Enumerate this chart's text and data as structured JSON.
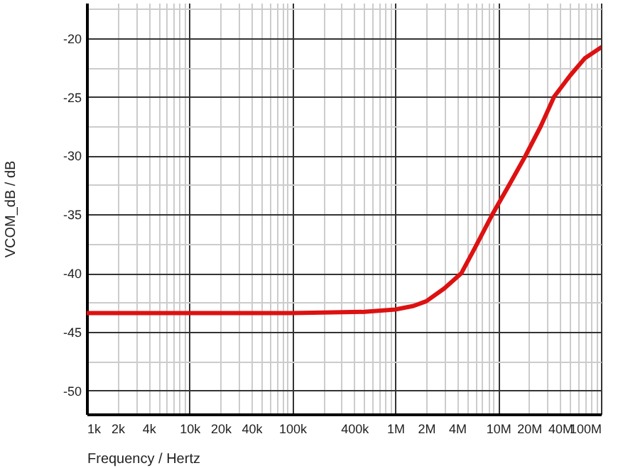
{
  "chart_data": {
    "type": "line",
    "xlabel": "Frequency / Hertz",
    "ylabel": "VCOM_dB / dB",
    "log": "x",
    "grid": true,
    "marker": "none",
    "line_style": "solid",
    "x": [
      1000,
      100000,
      500000,
      1000000,
      1500000,
      2000000,
      3000000,
      4400000,
      6000000,
      8800000,
      13000000,
      18500000,
      26000000,
      35000000,
      50000000,
      70000000,
      100000000
    ],
    "series": [
      {
        "color": "#dd1111",
        "values": [
          -43.4,
          -43.4,
          -43.3,
          -43.1,
          -42.8,
          -42.4,
          -41.3,
          -40,
          -37.8,
          -35,
          -32.4,
          -30,
          -27.5,
          -25,
          -23.2,
          -21.7,
          -20.8
        ]
      }
    ],
    "xlim": [
      1000,
      100000000
    ],
    "ylim": [
      -52,
      -17
    ],
    "xticks": [
      {
        "value": 1000,
        "label": "1k"
      },
      {
        "value": 2000,
        "label": "2k"
      },
      {
        "value": 3000,
        "label": null
      },
      {
        "value": 4000,
        "label": "4k"
      },
      {
        "value": 5000,
        "label": null
      },
      {
        "value": 6000,
        "label": null
      },
      {
        "value": 7000,
        "label": null
      },
      {
        "value": 8000,
        "label": null
      },
      {
        "value": 9000,
        "label": null
      },
      {
        "value": 10000,
        "label": "10k"
      },
      {
        "value": 20000,
        "label": "20k"
      },
      {
        "value": 30000,
        "label": null
      },
      {
        "value": 40000,
        "label": "40k"
      },
      {
        "value": 50000,
        "label": null
      },
      {
        "value": 60000,
        "label": null
      },
      {
        "value": 70000,
        "label": null
      },
      {
        "value": 80000,
        "label": null
      },
      {
        "value": 90000,
        "label": null
      },
      {
        "value": 100000,
        "label": "100k"
      },
      {
        "value": 200000,
        "label": null
      },
      {
        "value": 300000,
        "label": null
      },
      {
        "value": 400000,
        "label": "400k"
      },
      {
        "value": 500000,
        "label": null
      },
      {
        "value": 600000,
        "label": null
      },
      {
        "value": 700000,
        "label": null
      },
      {
        "value": 800000,
        "label": null
      },
      {
        "value": 900000,
        "label": null
      },
      {
        "value": 1000000,
        "label": "1M"
      },
      {
        "value": 2000000,
        "label": "2M"
      },
      {
        "value": 3000000,
        "label": null
      },
      {
        "value": 4000000,
        "label": "4M"
      },
      {
        "value": 5000000,
        "label": null
      },
      {
        "value": 6000000,
        "label": null
      },
      {
        "value": 7000000,
        "label": null
      },
      {
        "value": 8000000,
        "label": null
      },
      {
        "value": 9000000,
        "label": null
      },
      {
        "value": 10000000,
        "label": "10M"
      },
      {
        "value": 20000000,
        "label": "20M"
      },
      {
        "value": 30000000,
        "label": null
      },
      {
        "value": 40000000,
        "label": "40M"
      },
      {
        "value": 50000000,
        "label": null
      },
      {
        "value": 60000000,
        "label": null
      },
      {
        "value": 70000000,
        "label": null
      },
      {
        "value": 80000000,
        "label": null
      },
      {
        "value": 90000000,
        "label": null
      },
      {
        "value": 100000000,
        "label": "100M"
      }
    ],
    "yticks": [
      {
        "value": -17.5,
        "label": null
      },
      -20,
      {
        "value": -22.5,
        "label": null
      },
      -25,
      {
        "value": -27.5,
        "label": null
      },
      -30,
      {
        "value": -32.5,
        "label": null
      },
      -35,
      {
        "value": -37.5,
        "label": null
      },
      -40,
      {
        "value": -42.5,
        "label": null
      },
      -45,
      {
        "value": -47.5,
        "label": null
      },
      -50
    ]
  }
}
